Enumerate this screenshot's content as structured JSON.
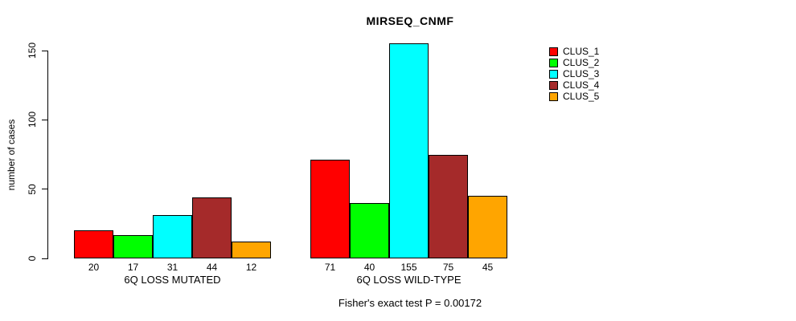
{
  "chart_data": {
    "type": "bar",
    "title": "MIRSEQ_CNMF",
    "xlabel": "",
    "ylabel": "number of cases",
    "ylim": [
      0,
      150
    ],
    "yticks": [
      0,
      50,
      100,
      150
    ],
    "categories": [
      "6Q LOSS MUTATED",
      "6Q LOSS WILD-TYPE"
    ],
    "series": [
      {
        "name": "CLUS_1",
        "color": "#FF0000",
        "values": [
          20,
          71
        ]
      },
      {
        "name": "CLUS_2",
        "color": "#00FF00",
        "values": [
          17,
          40
        ]
      },
      {
        "name": "CLUS_3",
        "color": "#00FFFF",
        "values": [
          31,
          155
        ]
      },
      {
        "name": "CLUS_4",
        "color": "#A52A2A",
        "values": [
          44,
          75
        ]
      },
      {
        "name": "CLUS_5",
        "color": "#FFA500",
        "values": [
          12,
          45
        ]
      }
    ],
    "bar_value_labels": [
      [
        "20",
        "17",
        "31",
        "44",
        "12"
      ],
      [
        "71",
        "40",
        "155",
        "75",
        "45"
      ]
    ],
    "legend_position": "right",
    "grid": false
  },
  "footer": {
    "note": "Fisher's exact test P = 0.00172"
  }
}
